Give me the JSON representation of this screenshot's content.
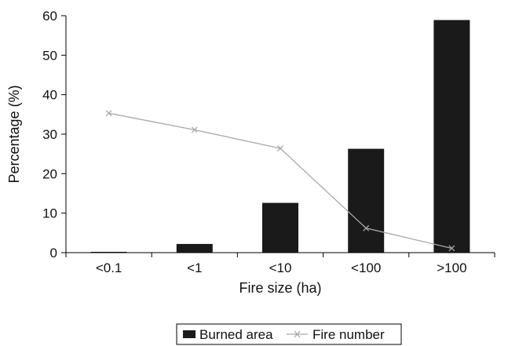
{
  "chart_data": {
    "type": "bar",
    "categories": [
      "<0.1",
      "<1",
      "<10",
      "<100",
      ">100"
    ],
    "series": [
      {
        "name": "Burned area",
        "type": "bar",
        "values": [
          0.2,
          2.2,
          12.6,
          26.3,
          58.9
        ],
        "color": "#1a1a1a"
      },
      {
        "name": "Fire number",
        "type": "line",
        "marker": "x",
        "values": [
          35.3,
          31.1,
          26.4,
          6.2,
          1.1
        ],
        "color": "#a9a9a9"
      }
    ],
    "xlabel": "Fire size (ha)",
    "ylabel": "Percentage (%)",
    "ylim": [
      0,
      60
    ],
    "yticks": [
      "0",
      "10",
      "20",
      "30",
      "40",
      "50",
      "60"
    ],
    "grid": false,
    "legend_position": "bottom-center"
  }
}
